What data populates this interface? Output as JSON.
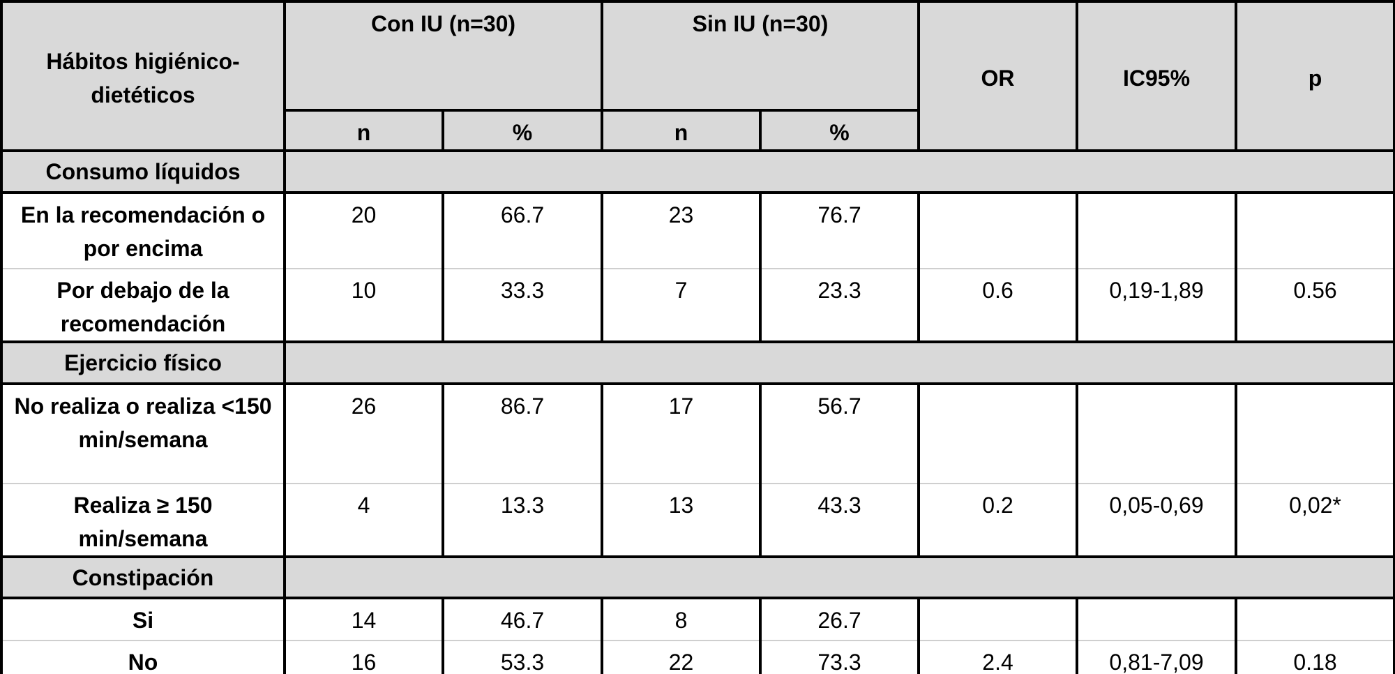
{
  "header": {
    "title": "Hábitos higiénico-dietéticos",
    "groups": [
      "Con IU (n=30)",
      "Sin IU (n=30)"
    ],
    "subcolumns": [
      "n",
      "%",
      "n",
      "%"
    ],
    "stats": [
      "OR",
      "IC95%",
      "p"
    ]
  },
  "sections": [
    {
      "title": "Consumo líquidos",
      "rows": [
        {
          "label": "En la recomendación o por encima",
          "cells": [
            20,
            66.7,
            23,
            76.7
          ]
        },
        {
          "label": "Por debajo de la recomendación",
          "cells": [
            10,
            33.3,
            7,
            23.3
          ],
          "stats": [
            0.6,
            "0,19-1,89",
            0.56
          ]
        }
      ]
    },
    {
      "title": "Ejercicio físico",
      "rows": [
        {
          "label": "No realiza o realiza <150 min/semana",
          "cells": [
            26,
            86.7,
            17,
            56.7
          ]
        },
        {
          "label": "Realiza ≥ 150 min/semana",
          "cells": [
            4,
            13.3,
            13,
            43.3
          ],
          "stats": [
            0.2,
            "0,05-0,69",
            "0,02*"
          ]
        }
      ]
    },
    {
      "title": "Constipación",
      "rows": [
        {
          "label": "Si",
          "cells": [
            14,
            46.7,
            8,
            26.7
          ]
        },
        {
          "label": "No",
          "cells": [
            16,
            53.3,
            22,
            73.3
          ],
          "stats": [
            2.4,
            "0,81-7,09",
            0.18
          ]
        }
      ]
    }
  ]
}
